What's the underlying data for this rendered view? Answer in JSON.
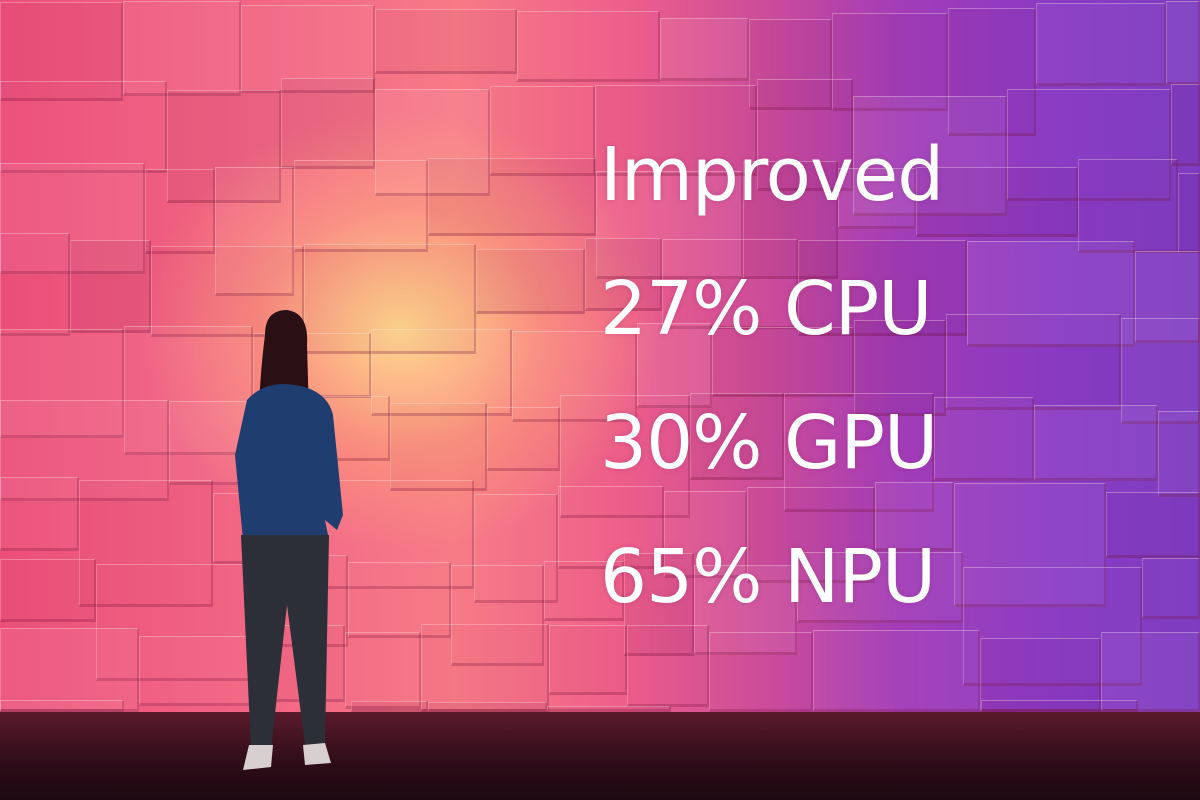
{
  "slide": {
    "lines": [
      "Improved",
      "27% CPU",
      "30% GPU",
      "65% NPU"
    ]
  },
  "colors": {
    "left_wall": "#ec4f7a",
    "glow": "#ffd890",
    "right_wall": "#8a3bc4",
    "text": "#ffffff",
    "floor": "#2d0c18"
  }
}
